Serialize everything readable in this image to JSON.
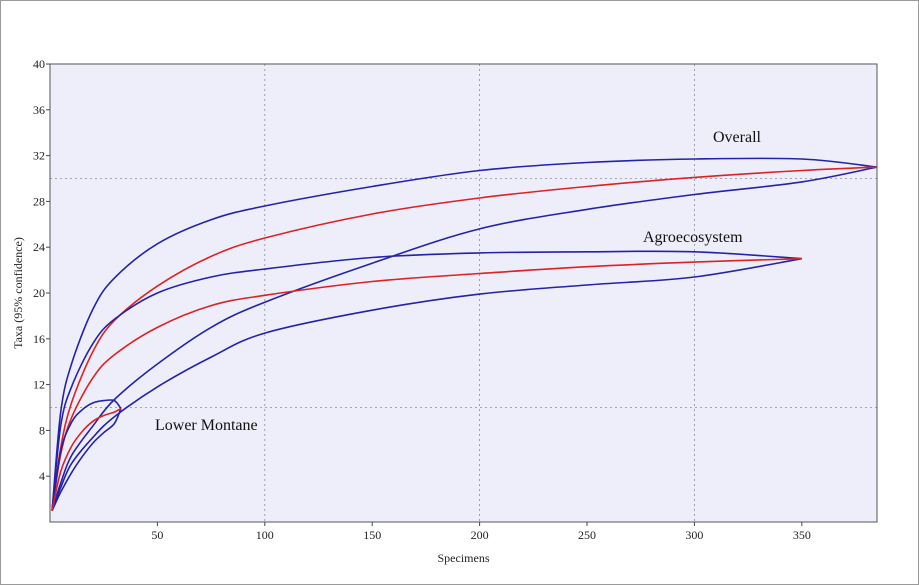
{
  "chart_data": {
    "type": "line",
    "title": "",
    "xlabel": "Specimens",
    "ylabel": "Taxa (95% confidence)",
    "xlim": [
      0,
      385
    ],
    "ylim": [
      0,
      40
    ],
    "xticks": [
      50,
      100,
      150,
      200,
      250,
      300,
      350
    ],
    "yticks": [
      4,
      8,
      12,
      16,
      20,
      24,
      28,
      32,
      36,
      40
    ],
    "grid_x": [
      100,
      200,
      300
    ],
    "grid_y": [
      10,
      30
    ],
    "grid": true,
    "colors": {
      "mean": "#dd2222",
      "confidence": "#2222aa",
      "plot_bg": "#eeeefa",
      "grid": "#8a8a9a"
    },
    "series": [
      {
        "name": "Overall",
        "x": [
          1,
          5,
          10,
          20,
          30,
          50,
          75,
          100,
          150,
          200,
          250,
          300,
          350,
          385
        ],
        "mean": [
          1,
          6.5,
          10.4,
          14.9,
          17.6,
          20.6,
          23.2,
          24.8,
          26.9,
          28.3,
          29.3,
          30.1,
          30.7,
          31.0
        ],
        "upper": [
          1,
          9.6,
          13.8,
          18.6,
          21.3,
          24.3,
          26.4,
          27.6,
          29.3,
          30.7,
          31.4,
          31.7,
          31.7,
          31.0
        ],
        "lower": [
          1,
          3.4,
          5.8,
          8.4,
          10.7,
          13.8,
          17.0,
          19.2,
          22.6,
          25.6,
          27.3,
          28.6,
          29.7,
          31.0
        ]
      },
      {
        "name": "Agroecosystem",
        "x": [
          1,
          5,
          10,
          20,
          30,
          50,
          75,
          100,
          150,
          200,
          250,
          300,
          350
        ],
        "mean": [
          1,
          5.9,
          9.1,
          12.6,
          14.6,
          17.0,
          18.9,
          19.8,
          21.0,
          21.7,
          22.3,
          22.7,
          23.0
        ],
        "upper": [
          1,
          8.4,
          11.8,
          15.6,
          17.7,
          20.0,
          21.4,
          22.1,
          23.1,
          23.5,
          23.6,
          23.6,
          23.0
        ],
        "lower": [
          1,
          3.0,
          5.1,
          7.4,
          9.2,
          11.8,
          14.4,
          16.5,
          18.5,
          19.9,
          20.7,
          21.4,
          23.0
        ]
      },
      {
        "name": "Lower Montane",
        "x": [
          1,
          5,
          10,
          15,
          20,
          25,
          30,
          33
        ],
        "mean": [
          1,
          4.4,
          6.6,
          7.9,
          8.8,
          9.3,
          9.6,
          9.9
        ],
        "upper": [
          1,
          6.2,
          8.7,
          9.8,
          10.4,
          10.6,
          10.6,
          9.9
        ],
        "lower": [
          1,
          2.6,
          4.3,
          5.7,
          6.9,
          7.8,
          8.6,
          9.9
        ]
      }
    ],
    "annotations": [
      "Overall",
      "Agroecosystem",
      "Lower Montane"
    ]
  }
}
